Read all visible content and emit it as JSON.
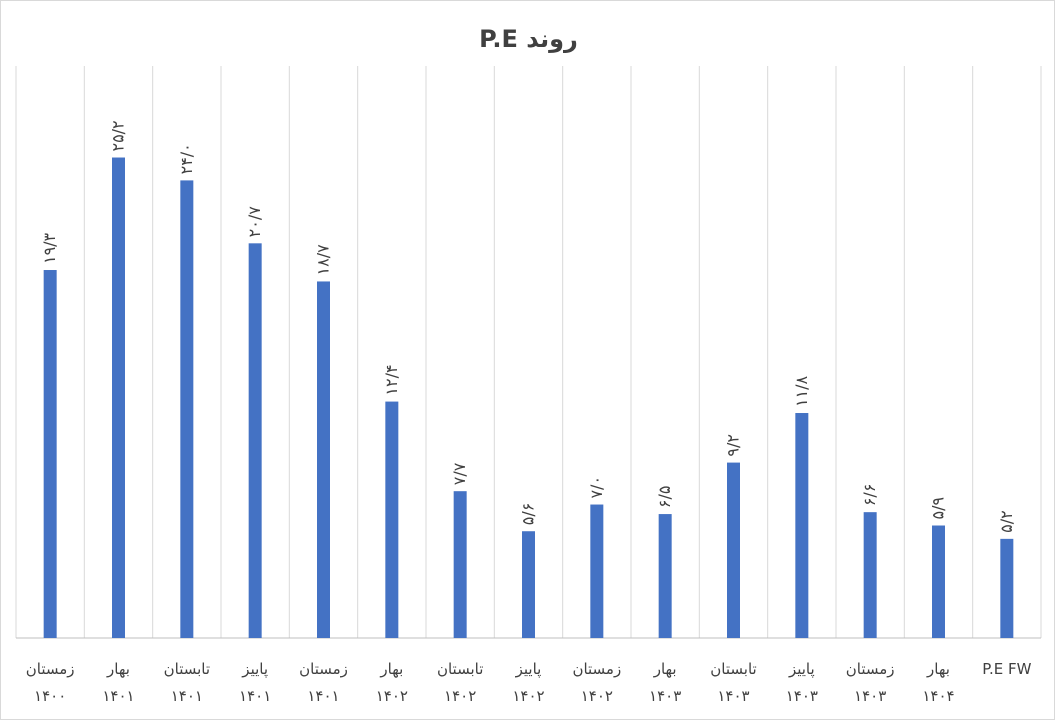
{
  "chart_data": {
    "type": "bar",
    "title": "روند P.E",
    "xlabel": "",
    "ylabel": "",
    "ylim": [
      0,
      30
    ],
    "grid": "vertical",
    "legend": "none",
    "bar_color": "#4472c4",
    "categories": [
      [
        "زمستان",
        "۱۴۰۰"
      ],
      [
        "بهار",
        "۱۴۰۱"
      ],
      [
        "تابستان",
        "۱۴۰۱"
      ],
      [
        "پاییز",
        "۱۴۰۱"
      ],
      [
        "زمستان",
        "۱۴۰۱"
      ],
      [
        "بهار",
        "۱۴۰۲"
      ],
      [
        "تابستان",
        "۱۴۰۲"
      ],
      [
        "پاییز",
        "۱۴۰۲"
      ],
      [
        "زمستان",
        "۱۴۰۲"
      ],
      [
        "بهار",
        "۱۴۰۳"
      ],
      [
        "تابستان",
        "۱۴۰۳"
      ],
      [
        "پاییز",
        "۱۴۰۳"
      ],
      [
        "زمستان",
        "۱۴۰۳"
      ],
      [
        "بهار",
        "۱۴۰۴"
      ],
      [
        "P.E FW",
        ""
      ]
    ],
    "values": [
      19.3,
      25.2,
      24.0,
      20.7,
      18.7,
      12.4,
      7.7,
      5.6,
      7.0,
      6.5,
      9.2,
      11.8,
      6.6,
      5.9,
      5.2
    ],
    "data_labels": [
      "۱۹/۳",
      "۲۵/۲",
      "۲۴/۰",
      "۲۰/۷",
      "۱۸/۷",
      "۱۲/۴",
      "۷/۷",
      "۵/۶",
      "۷/۰",
      "۶/۵",
      "۹/۲",
      "۱۱/۸",
      "۶/۶",
      "۵/۹",
      "۵/۲"
    ]
  }
}
